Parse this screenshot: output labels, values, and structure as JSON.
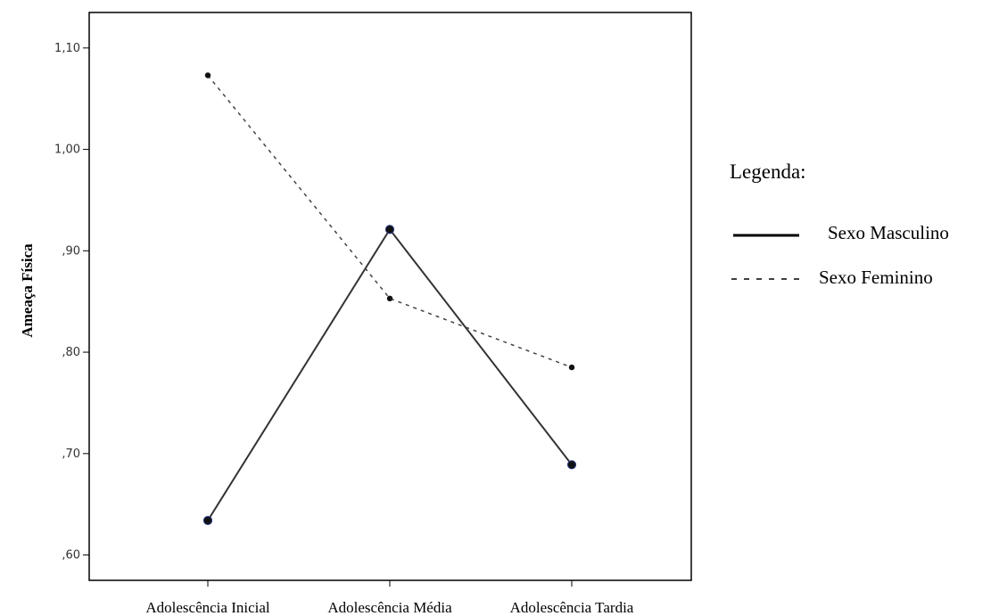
{
  "chart_data": {
    "type": "line",
    "categories": [
      "Adolescência Inicial",
      "Adolescência Média",
      "Adolescência Tardia"
    ],
    "series": [
      {
        "name": "Sexo Masculino",
        "values": [
          0.634,
          0.921,
          0.689
        ],
        "style": "solid",
        "color": "#333333"
      },
      {
        "name": "Sexo Feminino",
        "values": [
          1.073,
          0.853,
          0.785
        ],
        "style": "dashed",
        "color": "#444444"
      }
    ],
    "ylabel": "Ameaça Física",
    "xlabel": "",
    "ylim": [
      0.575,
      1.135
    ],
    "yticks": [
      0.6,
      0.7,
      0.8,
      0.9,
      1.0,
      1.1
    ],
    "ytick_labels": [
      ",60",
      ",70",
      ",80",
      ",90",
      "1,00",
      "1,10"
    ],
    "grid": false,
    "legend": {
      "title": "Legenda:",
      "placement": "right"
    }
  }
}
